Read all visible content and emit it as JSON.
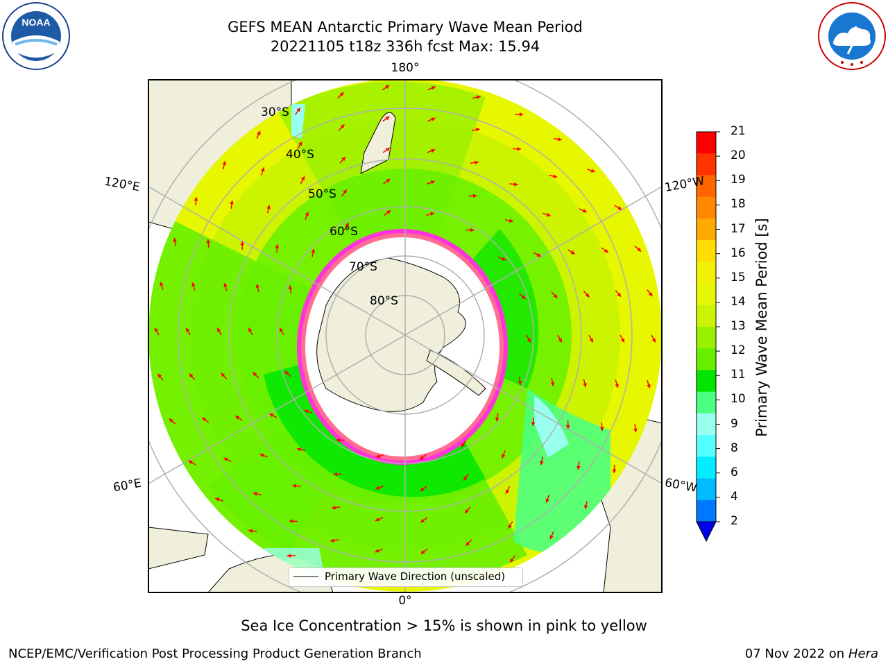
{
  "header": {
    "title_line1": "GEFS MEAN Antarctic Primary Wave Mean Period",
    "title_line2": "20221105 t18z 336h fcst   Max: 15.94"
  },
  "logos": {
    "left": "noaa-logo",
    "left_text": "NOAA",
    "right": "nws-logo"
  },
  "map": {
    "longitude_labels": [
      "180°",
      "120°E",
      "120°W",
      "60°E",
      "60°W",
      "0°"
    ],
    "latitude_labels": [
      "30°S",
      "40°S",
      "50°S",
      "60°S",
      "70°S",
      "80°S"
    ],
    "legend_label": "Primary Wave Direction (unscaled)",
    "arrow_color": "#ff0000",
    "land_color": "#efefdb",
    "ice_color": "#ffffff",
    "gridline_color": "#b0b0b0"
  },
  "colorbar": {
    "label": "Primary Wave Mean Period [s]",
    "ticks": [
      "21",
      "20",
      "19",
      "18",
      "17",
      "16",
      "15",
      "14",
      "13",
      "12",
      "11",
      "10",
      "9",
      "8",
      "6",
      "4",
      "2"
    ],
    "colors_top_to_bottom": [
      "#ff0000",
      "#ff3300",
      "#ff6600",
      "#ff8800",
      "#ffaa00",
      "#ffdd00",
      "#f2f200",
      "#e6f700",
      "#ccf400",
      "#99f000",
      "#66f000",
      "#00e600",
      "#4dff80",
      "#99ffee",
      "#55ffff",
      "#00eeff",
      "#00bbff",
      "#0077ff"
    ],
    "extend_color": "#0000ee"
  },
  "notes": {
    "sea_ice": "Sea Ice Concentration > 15% is shown in pink to yellow"
  },
  "footer": {
    "left": "NCEP/EMC/Verification Post Processing Product Generation Branch",
    "right_date": "07 Nov 2022 on",
    "right_host": "Hera"
  }
}
